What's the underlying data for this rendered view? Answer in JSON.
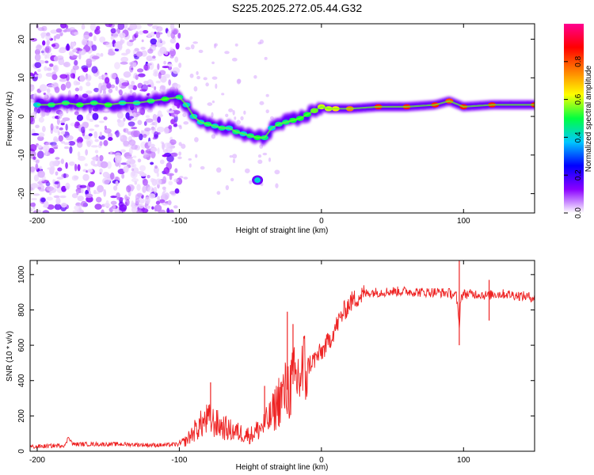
{
  "title": "S225.2025.272.05.44.G32",
  "chart_data": [
    {
      "type": "heatmap",
      "name": "spectrogram",
      "xlabel": "Height of straight line (km)",
      "ylabel": "Frequency (Hz)",
      "xlim": [
        -205,
        150
      ],
      "ylim": [
        -25,
        24
      ],
      "xticks": [
        -200,
        -100,
        0,
        100
      ],
      "xtick_labels": [
        "-200",
        "-100",
        "0",
        "100"
      ],
      "yticks": [
        -20,
        -10,
        0,
        10,
        20
      ],
      "ytick_labels": [
        "-20",
        "-10",
        "0",
        "10",
        "20"
      ],
      "colorbar": {
        "label": "Normalized spectral amplitude",
        "range": [
          0,
          1
        ],
        "ticks": [
          0.0,
          0.2,
          0.4,
          0.6,
          0.8
        ],
        "tick_labels": [
          "0.0",
          "0.2",
          "0.4",
          "0.6",
          "0.8"
        ],
        "colors": [
          "#ffffff",
          "#8a00ff",
          "#0000ff",
          "#00c8ff",
          "#00ff40",
          "#ffff00",
          "#ff8000",
          "#ff0000",
          "#ff0090"
        ]
      },
      "ridge": {
        "x": [
          -200,
          -190,
          -180,
          -170,
          -160,
          -150,
          -140,
          -130,
          -120,
          -110,
          -100,
          -95,
          -90,
          -85,
          -80,
          -75,
          -70,
          -65,
          -60,
          -55,
          -50,
          -45,
          -40,
          -35,
          -30,
          -25,
          -20,
          -15,
          -10,
          -5,
          0,
          5,
          10,
          20,
          40,
          60,
          80,
          90,
          100,
          120,
          150
        ],
        "freq": [
          3,
          3,
          3.5,
          3,
          3.5,
          3,
          3.5,
          3.5,
          4,
          4.5,
          5,
          3,
          0,
          -1.5,
          -2,
          -2.5,
          -3,
          -3,
          -4,
          -4.5,
          -5,
          -5.5,
          -5.5,
          -3,
          -2,
          -1.5,
          -1,
          -0.5,
          0.5,
          1.5,
          2.5,
          2,
          2,
          2,
          2.5,
          2.5,
          3,
          4,
          2.5,
          3,
          3
        ],
        "amplitude": [
          0.4,
          0.45,
          0.45,
          0.5,
          0.45,
          0.5,
          0.4,
          0.4,
          0.45,
          0.5,
          0.45,
          0.4,
          0.4,
          0.4,
          0.45,
          0.4,
          0.45,
          0.4,
          0.45,
          0.4,
          0.45,
          0.5,
          0.45,
          0.4,
          0.45,
          0.45,
          0.5,
          0.5,
          0.5,
          0.55,
          0.6,
          0.6,
          0.65,
          0.75,
          0.85,
          0.85,
          0.85,
          0.8,
          0.85,
          0.85,
          0.85
        ]
      },
      "isolated_blob": {
        "x": -45,
        "freq": -16.5
      }
    },
    {
      "type": "line",
      "name": "snr",
      "xlabel": "Height of straight line (km)",
      "ylabel": "SNR (10 * v/v)",
      "xlim": [
        -205,
        150
      ],
      "ylim": [
        0,
        1080
      ],
      "xticks": [
        -200,
        -100,
        0,
        100
      ],
      "xtick_labels": [
        "-200",
        "-100",
        "0",
        "100"
      ],
      "yticks": [
        0,
        200,
        400,
        600,
        800,
        1000
      ],
      "ytick_labels": [
        "0",
        "200",
        "400",
        "600",
        "800",
        "1000"
      ],
      "color": "#ee2222",
      "x": [
        -205,
        -190,
        -180,
        -178,
        -175,
        -160,
        -140,
        -120,
        -110,
        -100,
        -95,
        -90,
        -85,
        -80,
        -75,
        -70,
        -65,
        -60,
        -55,
        -50,
        -45,
        -40,
        -35,
        -30,
        -25,
        -20,
        -15,
        -10,
        -5,
        0,
        5,
        10,
        15,
        20,
        25,
        30,
        35,
        40,
        50,
        60,
        70,
        80,
        90,
        95,
        97,
        98,
        100,
        110,
        118,
        120,
        130,
        140,
        150
      ],
      "y": [
        25,
        30,
        35,
        85,
        40,
        40,
        40,
        35,
        35,
        40,
        60,
        110,
        150,
        180,
        160,
        140,
        120,
        110,
        100,
        90,
        120,
        150,
        200,
        290,
        340,
        380,
        430,
        480,
        520,
        560,
        620,
        700,
        780,
        840,
        870,
        890,
        900,
        900,
        905,
        905,
        900,
        900,
        895,
        880,
        700,
        870,
        890,
        890,
        880,
        890,
        890,
        880,
        870
      ],
      "spikes": [
        {
          "x": -78,
          "y": 390
        },
        {
          "x": -40,
          "y": 370
        },
        {
          "x": -24,
          "y": 790
        },
        {
          "x": -20,
          "y": 720
        },
        {
          "x": 97,
          "y": 1080
        },
        {
          "x": 97,
          "y": 600
        },
        {
          "x": 118,
          "y": 970
        },
        {
          "x": 118,
          "y": 740
        }
      ]
    }
  ]
}
